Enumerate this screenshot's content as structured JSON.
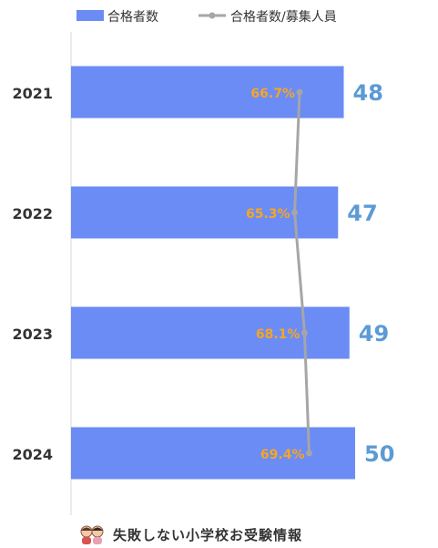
{
  "chart_data": {
    "type": "bar",
    "orientation": "horizontal",
    "categories": [
      "2021",
      "2022",
      "2023",
      "2024"
    ],
    "series": [
      {
        "name": "合格者数",
        "kind": "bar",
        "values": [
          48,
          47,
          49,
          50
        ],
        "labels": [
          "48",
          "47",
          "49",
          "50"
        ]
      },
      {
        "name": "合格者数/募集人員",
        "kind": "line",
        "values": [
          66.7,
          65.3,
          68.1,
          69.4
        ],
        "labels": [
          "66.7%",
          "65.3%",
          "68.1%",
          "69.4%"
        ]
      }
    ],
    "legend_position": "top",
    "grid": false,
    "colors": {
      "bar": "#6b8cf5",
      "line": "#a6a6a6",
      "bar_label": "#5b9bd5",
      "line_label": "#f5a623",
      "axis_text": "#333333"
    }
  },
  "footer": {
    "text": "失敗しない小学校お受験情報",
    "icon": "children-icon"
  }
}
